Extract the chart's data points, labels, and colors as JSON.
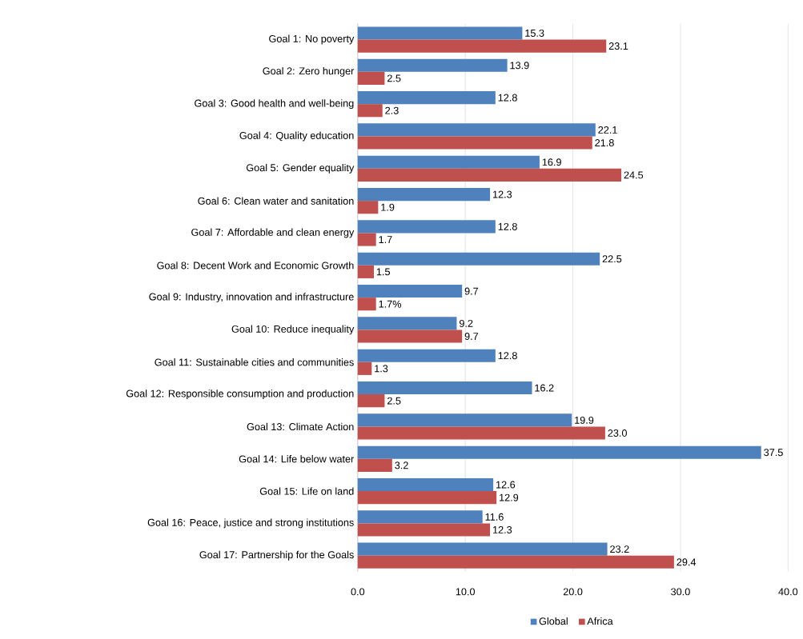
{
  "chart_data": {
    "type": "bar",
    "orientation": "horizontal",
    "categories": [
      "Goal 1: No poverty",
      "Goal 2: Zero hunger",
      "Goal 3: Good health and well-being",
      "Goal 4: Quality education",
      "Goal 5: Gender equality",
      "Goal 6: Clean water and sanitation",
      "Goal 7: Affordable and clean energy",
      "Goal 8: Decent Work and Economic Growth",
      "Goal 9: Industry, innovation and infrastructure",
      "Goal 10: Reduce inequality",
      "Goal 11: Sustainable cities and communities",
      "Goal 12: Responsible consumption and production",
      "Goal 13: Climate Action",
      "Goal 14: Life below water",
      "Goal 15: Life on land",
      "Goal 16: Peace, justice and strong institutions",
      "Goal 17: Partnership for the Goals"
    ],
    "series": [
      {
        "name": "Global",
        "color": "#4f81bd",
        "values": [
          15.3,
          13.9,
          12.8,
          22.1,
          16.9,
          12.3,
          12.8,
          22.5,
          9.7,
          9.2,
          12.8,
          16.2,
          19.9,
          37.5,
          12.6,
          11.6,
          23.2
        ],
        "value_labels": [
          "15.3",
          "13.9",
          "12.8",
          "22.1",
          "16.9",
          "12.3",
          "12.8",
          "22.5",
          "9.7",
          "9.2",
          "12.8",
          "16.2",
          "19.9",
          "37.5",
          "12.6",
          "11.6",
          "23.2"
        ]
      },
      {
        "name": "Africa",
        "color": "#c0504d",
        "values": [
          23.1,
          2.5,
          2.3,
          21.8,
          24.5,
          1.9,
          1.7,
          1.5,
          1.7,
          9.7,
          1.3,
          2.5,
          23.0,
          3.2,
          12.9,
          12.3,
          29.4
        ],
        "value_labels": [
          "23.1",
          "2.5",
          "2.3",
          "21.8",
          "24.5",
          "1.9",
          "1.7",
          "1.5",
          "1.7%",
          "9.7",
          "1.3",
          "2.5",
          "23.0",
          "3.2",
          "12.9",
          "12.3",
          "29.4"
        ]
      }
    ],
    "xlim": [
      0,
      40
    ],
    "xticks": [
      {
        "value": 0,
        "label": "0.0"
      },
      {
        "value": 10,
        "label": "10.0"
      },
      {
        "value": 20,
        "label": "20.0"
      },
      {
        "value": 30,
        "label": "30.0"
      },
      {
        "value": 40,
        "label": "40.0"
      }
    ],
    "grid": "x",
    "legend": "bottom"
  }
}
